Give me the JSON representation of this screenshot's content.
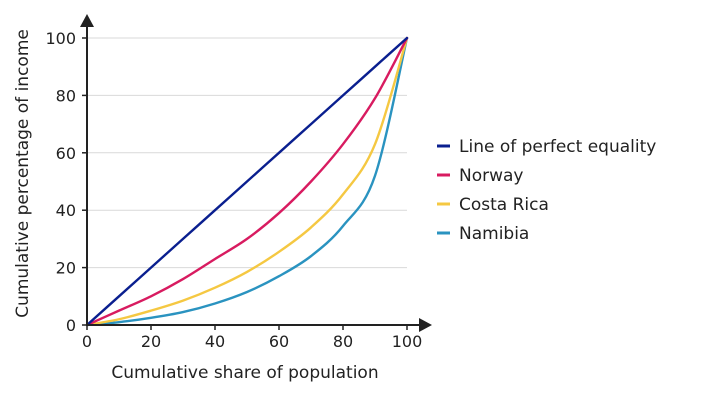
{
  "chart_data": {
    "type": "line",
    "title": "",
    "xlabel": "Cumulative share of population",
    "ylabel": "Cumulative percentage of income",
    "xlim": [
      0,
      100
    ],
    "ylim": [
      0,
      100
    ],
    "grid": true,
    "legend_position": "right",
    "x_ticks": [
      "0",
      "20",
      "40",
      "60",
      "80",
      "100"
    ],
    "y_ticks": [
      "0",
      "20",
      "40",
      "60",
      "80",
      "100"
    ],
    "series": [
      {
        "name": "Line of perfect equality",
        "color": "#0a1f8f",
        "x": [
          0,
          10,
          20,
          30,
          40,
          50,
          60,
          70,
          80,
          90,
          100
        ],
        "y": [
          0,
          10,
          20,
          30,
          40,
          50,
          60,
          70,
          80,
          90,
          100
        ]
      },
      {
        "name": "Norway",
        "color": "#d81b60",
        "x": [
          0,
          10,
          20,
          30,
          40,
          50,
          60,
          70,
          80,
          90,
          100
        ],
        "y": [
          0,
          5,
          10,
          16,
          23,
          30,
          39,
          50,
          63,
          79,
          100
        ]
      },
      {
        "name": "Costa Rica",
        "color": "#f5c842",
        "x": [
          0,
          10,
          20,
          30,
          40,
          50,
          60,
          70,
          80,
          90,
          100
        ],
        "y": [
          0,
          2,
          5,
          8.5,
          13,
          18.5,
          25.5,
          34,
          45.5,
          63,
          100
        ]
      },
      {
        "name": "Namibia",
        "color": "#2a93c0",
        "x": [
          0,
          10,
          20,
          30,
          40,
          50,
          60,
          70,
          80,
          90,
          100
        ],
        "y": [
          0,
          1,
          2.5,
          4.5,
          7.5,
          11.5,
          17,
          24,
          34.5,
          52,
          100
        ]
      }
    ]
  }
}
